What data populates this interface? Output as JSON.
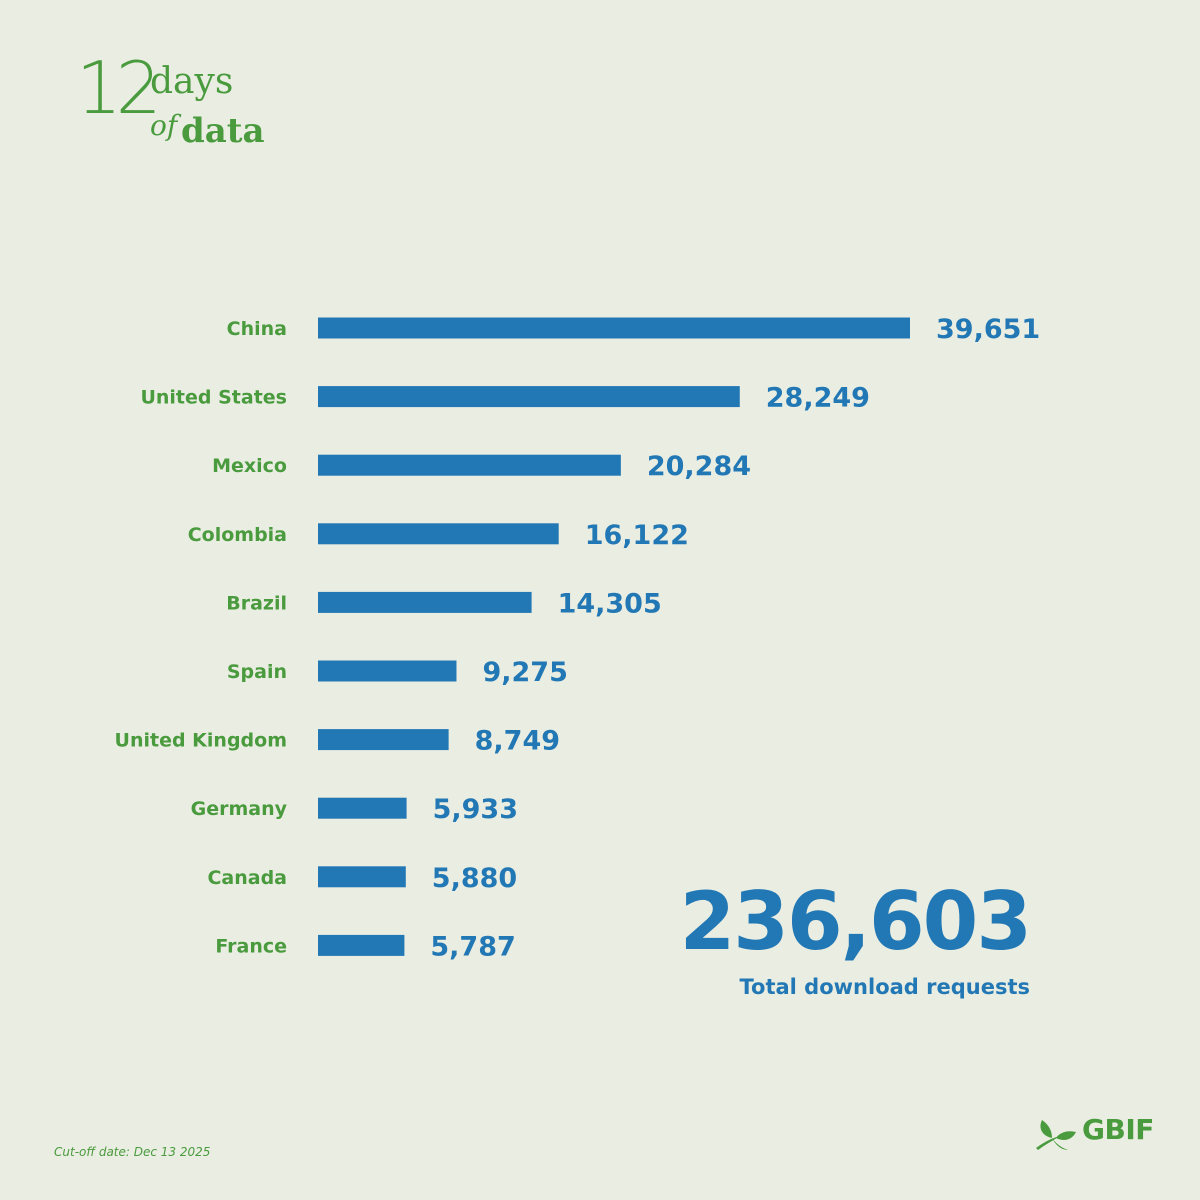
{
  "brand": {
    "number": "12",
    "days": "days",
    "of": "of",
    "data": "data",
    "logo_name": "GBIF",
    "accent_green": "#4a9a3e",
    "accent_blue": "#2277b5",
    "background": "#eaeee2"
  },
  "chart_data": {
    "type": "bar",
    "orientation": "horizontal",
    "categories": [
      "China",
      "United States",
      "Mexico",
      "Colombia",
      "Brazil",
      "Spain",
      "United Kingdom",
      "Germany",
      "Canada",
      "France"
    ],
    "values": [
      39651,
      28249,
      20284,
      16122,
      14305,
      9275,
      8749,
      5933,
      5880,
      5787
    ],
    "value_labels": [
      "39,651",
      "28,249",
      "20,284",
      "16,122",
      "14,305",
      "9,275",
      "8,749",
      "5,933",
      "5,880",
      "5,787"
    ],
    "title": "",
    "xlabel": "",
    "ylabel": "",
    "grid": false,
    "legend": "none"
  },
  "total": {
    "value": "236,603",
    "label": "Total download requests"
  },
  "footnote": "Cut-off date: Dec 13 2025"
}
